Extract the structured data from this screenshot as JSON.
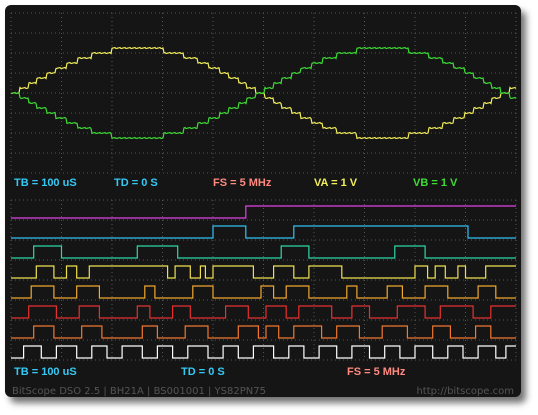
{
  "colors": {
    "background": "#151515",
    "grid": "#555555",
    "channel_a": "#f3ef5a",
    "channel_b": "#3edc35",
    "tb": "#35c9f5",
    "td": "#35c9f5",
    "fs": "#ff8a80",
    "va": "#f3ef5a",
    "vb": "#3edc35",
    "footer": "#555555",
    "logic": [
      "#e040e8",
      "#35c0f5",
      "#2fd8a8",
      "#f0e050",
      "#f0a830",
      "#e83030",
      "#f07830",
      "#ffffff"
    ]
  },
  "analog_status": {
    "tb": "TB = 100 uS",
    "td": "TD = 0 S",
    "fs": "FS = 5 MHz",
    "va": "VA = 1 V",
    "vb": "VB = 1 V"
  },
  "logic_status": {
    "tb": "TB = 100 uS",
    "td": "TD = 0 S",
    "fs": "FS = 5 MHz"
  },
  "footer": {
    "left": "BitScope DSO 2.5 | BH21A | BS001001 | YS82PN75",
    "right": "http://bitscope.com"
  },
  "logic_channels": [
    {
      "color": "#e040e8",
      "edges": [
        0.465
      ]
    },
    {
      "color": "#35c0f5",
      "edges": [
        0.4,
        0.465,
        0.56,
        0.905
      ]
    },
    {
      "color": "#2fd8a8",
      "edges": [
        0.045,
        0.1,
        0.25,
        0.33,
        0.535,
        0.59,
        0.76,
        0.82
      ]
    },
    {
      "color": "#f0e050",
      "edges": [
        0.05,
        0.085,
        0.11,
        0.13,
        0.155,
        0.31,
        0.325,
        0.355,
        0.375,
        0.385,
        0.4,
        0.48,
        0.52,
        0.56,
        0.59,
        0.655,
        0.8,
        0.825,
        0.84,
        0.86,
        0.885,
        0.9,
        0.94
      ]
    },
    {
      "color": "#f0a830",
      "edges": [
        0.04,
        0.085,
        0.13,
        0.175,
        0.265,
        0.285,
        0.36,
        0.4,
        0.495,
        0.52,
        0.545,
        0.59,
        0.665,
        0.685,
        0.745,
        0.775,
        0.82,
        0.865,
        0.925,
        0.96
      ]
    },
    {
      "color": "#e83030",
      "edges": [
        0.035,
        0.09,
        0.135,
        0.175,
        0.25,
        0.275,
        0.32,
        0.355,
        0.425,
        0.47,
        0.505,
        0.545,
        0.57,
        0.635,
        0.675,
        0.71,
        0.765,
        0.82,
        0.85,
        0.915,
        0.95
      ]
    },
    {
      "color": "#f07830",
      "edges": [
        0.045,
        0.085,
        0.14,
        0.18,
        0.26,
        0.29,
        0.345,
        0.39,
        0.45,
        0.49,
        0.505,
        0.53,
        0.56,
        0.615,
        0.645,
        0.69,
        0.735,
        0.785,
        0.835,
        0.87,
        0.92,
        0.95
      ]
    },
    {
      "color": "#ffffff",
      "edges": [
        0.025,
        0.06,
        0.09,
        0.13,
        0.16,
        0.19,
        0.22,
        0.26,
        0.29,
        0.32,
        0.35,
        0.39,
        0.42,
        0.45,
        0.48,
        0.52,
        0.55,
        0.58,
        0.61,
        0.645,
        0.675,
        0.71,
        0.74,
        0.77,
        0.8,
        0.835,
        0.865,
        0.895,
        0.925,
        0.96,
        0.98
      ]
    }
  ]
}
